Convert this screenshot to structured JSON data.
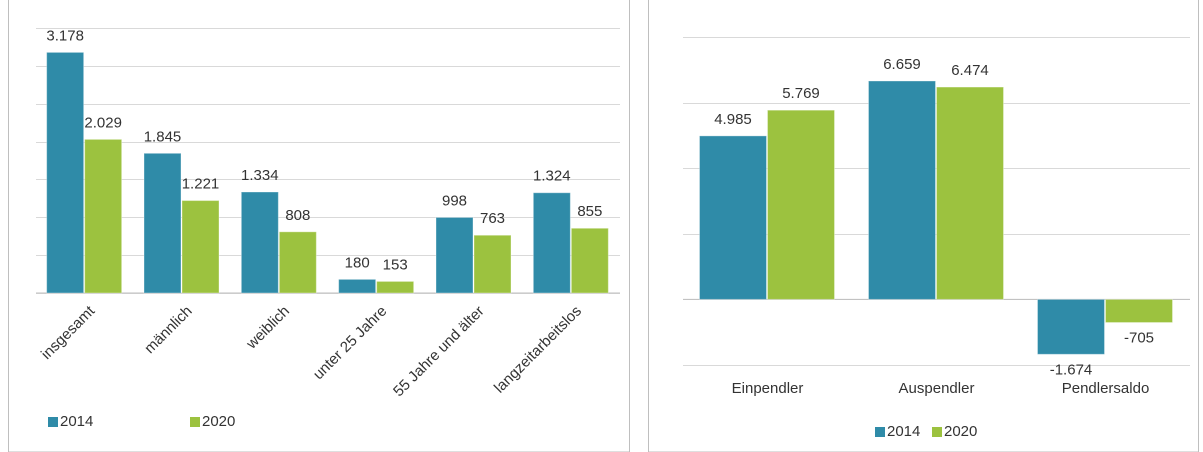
{
  "chart_data": [
    {
      "type": "bar",
      "categories": [
        "insgesamt",
        "männlich",
        "weiblich",
        "unter 25 Jahre",
        "55 Jahre und älter",
        "langzeitarbeitslos"
      ],
      "series": [
        {
          "name": "2014",
          "color": "#2f8ba8",
          "values": [
            3178,
            1845,
            1334,
            180,
            998,
            1324
          ],
          "value_labels": [
            "3.178",
            "1.845",
            "1.334",
            "180",
            "998",
            "1.324"
          ]
        },
        {
          "name": "2020",
          "color": "#9cc23f",
          "values": [
            2029,
            1221,
            808,
            153,
            763,
            855
          ],
          "value_labels": [
            "2.029",
            "1.221",
            "808",
            "153",
            "763",
            "855"
          ]
        }
      ],
      "ylim": [
        0,
        3500
      ],
      "yticks": [
        0,
        500,
        1000,
        1500,
        2000,
        2500,
        3000,
        3500
      ],
      "grid": true,
      "legend": "bottom"
    },
    {
      "type": "bar",
      "categories": [
        "Einpendler",
        "Auspendler",
        "Pendlersaldo"
      ],
      "series": [
        {
          "name": "2014",
          "color": "#2f8ba8",
          "values": [
            4985,
            6659,
            -1674
          ],
          "value_labels": [
            "4.985",
            "6.659",
            "-1.674"
          ]
        },
        {
          "name": "2020",
          "color": "#9cc23f",
          "values": [
            5769,
            6474,
            -705
          ],
          "value_labels": [
            "5.769",
            "6.474",
            "-705"
          ]
        }
      ],
      "ylim": [
        -2000,
        8000
      ],
      "yticks": [
        -2000,
        0,
        2000,
        4000,
        6000,
        8000
      ],
      "grid": true,
      "legend": "bottom"
    }
  ]
}
